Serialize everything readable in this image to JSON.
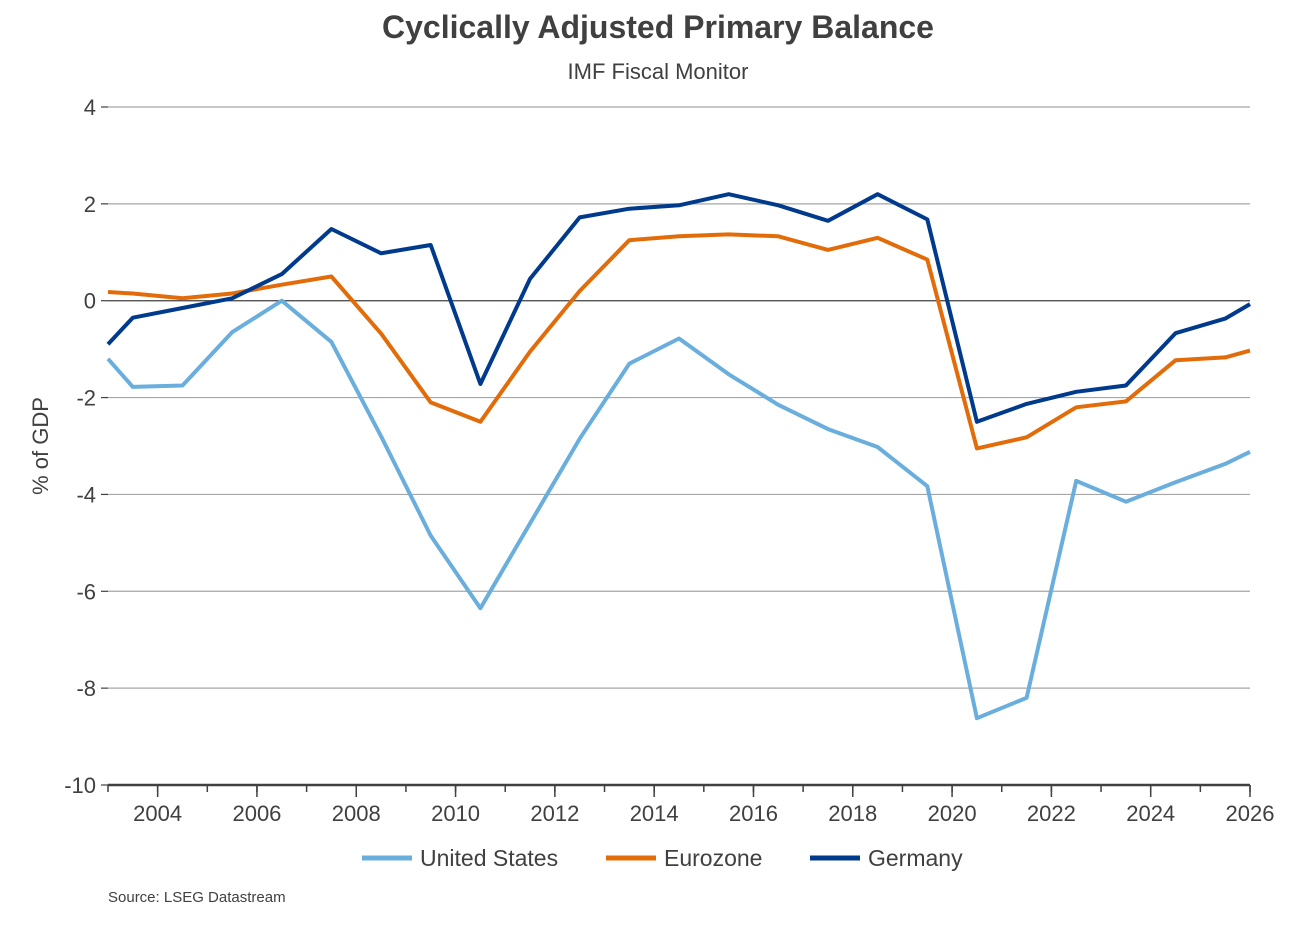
{
  "chart_data": {
    "type": "line",
    "title": "Cyclically Adjusted Primary Balance",
    "subtitle": "IMF Fiscal Monitor",
    "xlabel": "",
    "ylabel": "% of GDP",
    "source": "Source: LSEG Datastream",
    "xlim": [
      2003,
      2026
    ],
    "ylim": [
      -10,
      4
    ],
    "x_ticks": [
      "2004",
      "2006",
      "2008",
      "2010",
      "2012",
      "2014",
      "2016",
      "2018",
      "2020",
      "2022",
      "2024",
      "2026"
    ],
    "y_ticks": [
      "4",
      "2",
      "0",
      "-2",
      "-4",
      "-6",
      "-8",
      "-10"
    ],
    "legend_position": "bottom",
    "series": [
      {
        "name": "United States",
        "color": "#6AAEDD",
        "x": [
          2003,
          2003.5,
          2004.5,
          2005.5,
          2006.5,
          2007.5,
          2008.5,
          2009.5,
          2010.5,
          2011.5,
          2012.5,
          2013.5,
          2014.5,
          2015.5,
          2016.5,
          2017.5,
          2018.5,
          2019.5,
          2020.5,
          2021.5,
          2022.5,
          2023.5,
          2024.5,
          2025.5,
          2026
        ],
        "values": [
          -1.2,
          -1.78,
          -1.75,
          -0.65,
          0.0,
          -0.85,
          -2.8,
          -4.85,
          -6.35,
          -4.6,
          -2.85,
          -1.3,
          -0.78,
          -1.52,
          -2.15,
          -2.65,
          -3.02,
          -3.83,
          -8.62,
          -8.2,
          -3.72,
          -4.15,
          -3.75,
          -3.37,
          -3.12
        ]
      },
      {
        "name": "Eurozone",
        "color": "#E36C0A",
        "x": [
          2003,
          2003.5,
          2004.5,
          2005.5,
          2006.5,
          2007.5,
          2008.5,
          2009.5,
          2010.5,
          2011.5,
          2012.5,
          2013.5,
          2014.5,
          2015.5,
          2016.5,
          2017.5,
          2018.5,
          2019.5,
          2020.5,
          2021.5,
          2022.5,
          2023.5,
          2024.5,
          2025.5,
          2026
        ],
        "values": [
          0.18,
          0.15,
          0.05,
          0.15,
          0.33,
          0.5,
          -0.68,
          -2.1,
          -2.5,
          -1.05,
          0.2,
          1.25,
          1.33,
          1.37,
          1.33,
          1.05,
          1.3,
          0.85,
          -3.05,
          -2.82,
          -2.2,
          -2.08,
          -1.23,
          -1.17,
          -1.03
        ]
      },
      {
        "name": "Germany",
        "color": "#003A8C",
        "x": [
          2003,
          2003.5,
          2004.5,
          2005.5,
          2006.5,
          2007.5,
          2008.5,
          2009.5,
          2010.5,
          2011.5,
          2012.5,
          2013.5,
          2014.5,
          2015.5,
          2016.5,
          2017.5,
          2018.5,
          2019.5,
          2020.5,
          2021.5,
          2022.5,
          2023.5,
          2024.5,
          2025.5,
          2026
        ],
        "values": [
          -0.9,
          -0.35,
          -0.15,
          0.05,
          0.55,
          1.48,
          0.98,
          1.15,
          -1.72,
          0.45,
          1.72,
          1.9,
          1.97,
          2.2,
          1.97,
          1.65,
          2.2,
          1.68,
          -2.5,
          -2.13,
          -1.88,
          -1.75,
          -0.67,
          -0.37,
          -0.07
        ]
      }
    ]
  }
}
